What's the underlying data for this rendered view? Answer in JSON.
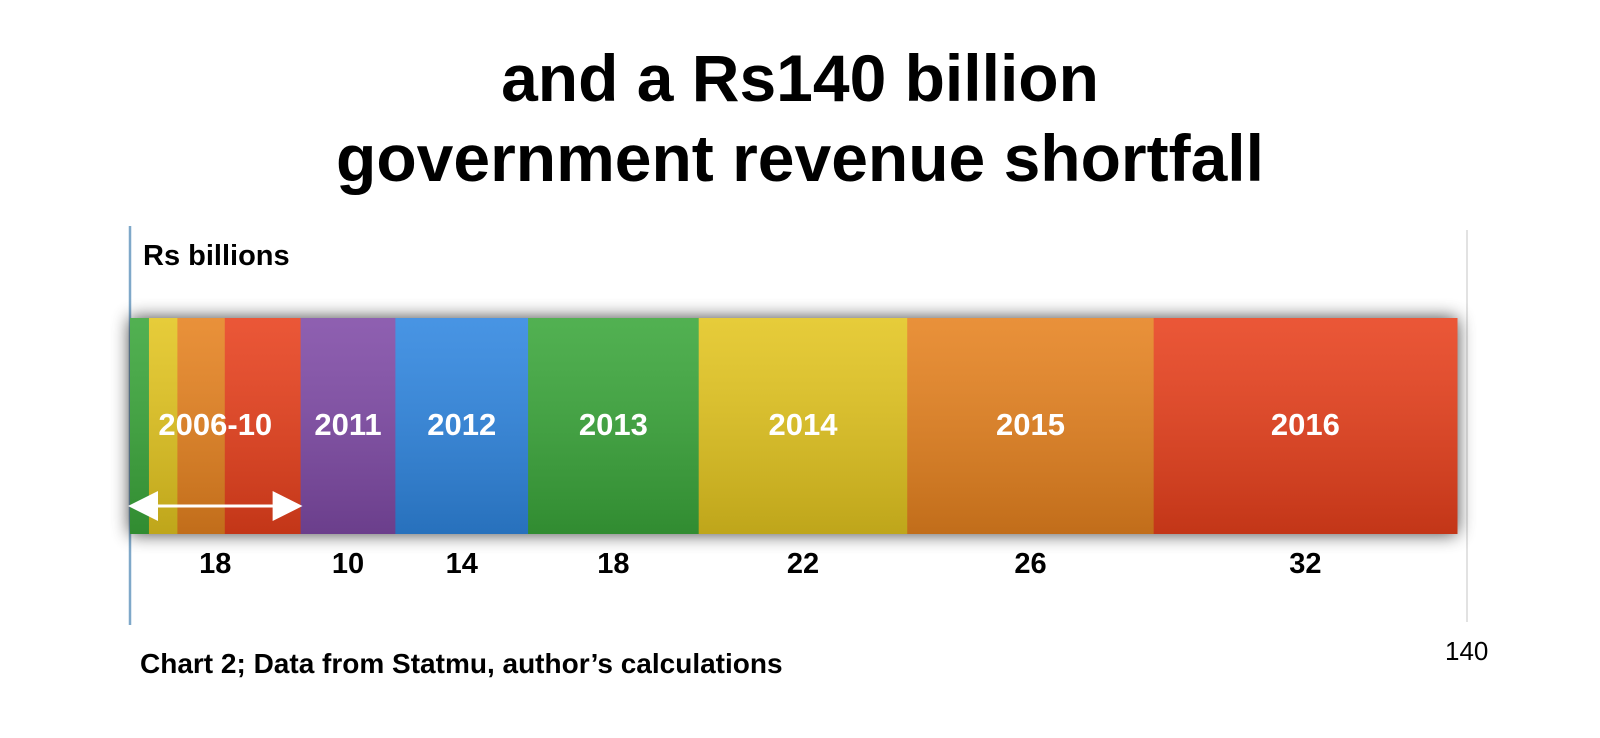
{
  "title_line1": "and a Rs140 billion",
  "title_line2": "government revenue shortfall",
  "unit_label": "Rs billions",
  "source_note": "Chart 2; Data from Statmu, author’s calculations",
  "total_label": "140",
  "chart_data": {
    "type": "bar",
    "orientation": "horizontal-stacked",
    "title": "and a Rs140 billion government revenue shortfall",
    "ylabel": "Rs billions",
    "xlim": [
      0,
      140
    ],
    "total": 140,
    "series": [
      {
        "name": "2006-10",
        "value": 18,
        "color": "#e8401c",
        "sub_bands": [
          {
            "value": 2.0,
            "color": "#3aa63a"
          },
          {
            "value": 3.0,
            "color": "#e3c51f"
          },
          {
            "value": 5.0,
            "color": "#e6821f"
          },
          {
            "value": 8.0,
            "color": "#e8401c"
          }
        ]
      },
      {
        "name": "2011",
        "value": 10,
        "color": "#7f4aa6"
      },
      {
        "name": "2012",
        "value": 14,
        "color": "#2f86e0"
      },
      {
        "name": "2013",
        "value": 18,
        "color": "#3aa63a"
      },
      {
        "name": "2014",
        "value": 22,
        "color": "#e3c51f"
      },
      {
        "name": "2015",
        "value": 26,
        "color": "#e6821f"
      },
      {
        "name": "2016",
        "value": 32,
        "color": "#e8401c"
      }
    ]
  }
}
